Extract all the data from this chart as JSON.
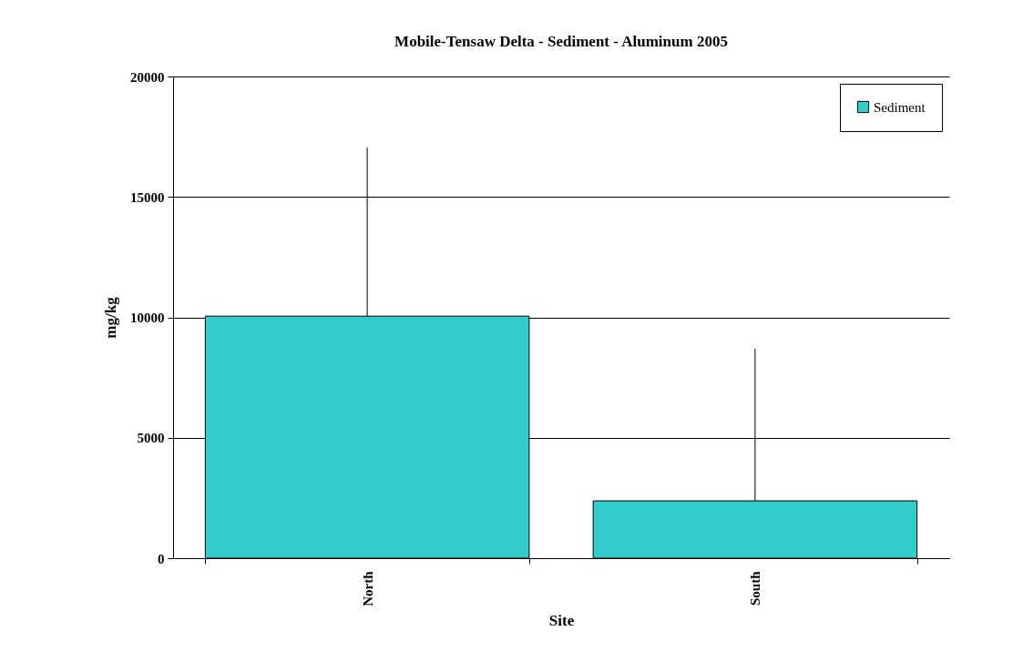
{
  "chart_data": {
    "type": "bar",
    "title": "Mobile-Tensaw Delta  - Sediment - Aluminum 2005",
    "xlabel": "Site",
    "ylabel": "mg/kg",
    "categories": [
      "North",
      "South"
    ],
    "series": [
      {
        "name": "Sediment",
        "color": "#33cccc",
        "values": [
          10050,
          2380
        ],
        "errors": [
          [
            10050,
            17050
          ],
          [
            2380,
            8700
          ]
        ]
      }
    ],
    "ylim": [
      0,
      20000
    ],
    "yticks": [
      0,
      5000,
      10000,
      15000,
      20000
    ],
    "grid": "y",
    "legend": "top right"
  }
}
